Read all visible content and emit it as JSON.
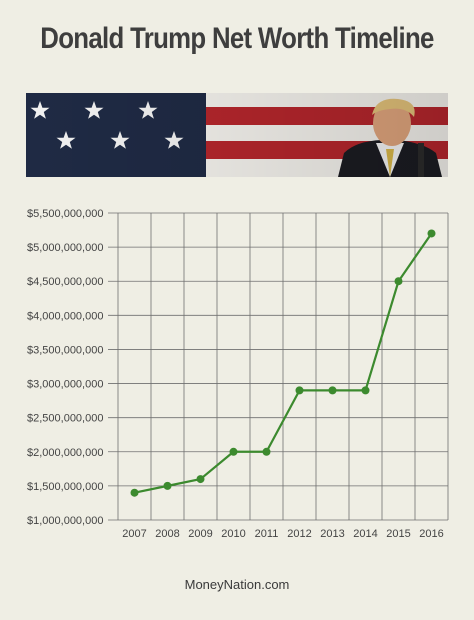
{
  "header": {
    "title": "Donald Trump Net Worth Timeline"
  },
  "banner": {
    "image": "american-flag-with-portrait",
    "colors": {
      "navy": "#1f2a44",
      "red": "#b5262c",
      "white": "#f3f1ec"
    }
  },
  "chart_data": {
    "type": "line",
    "title": "",
    "xlabel": "",
    "ylabel": "",
    "x": [
      2007,
      2008,
      2009,
      2010,
      2011,
      2012,
      2013,
      2014,
      2015,
      2016
    ],
    "x_tick_labels": [
      "2007",
      "2008",
      "2009",
      "2010",
      "2011",
      "2012",
      "2013",
      "2014",
      "2015",
      "2016"
    ],
    "series": [
      {
        "values": [
          1400000000,
          1500000000,
          1600000000,
          2000000000,
          2000000000,
          2900000000,
          2900000000,
          2900000000,
          4500000000,
          5200000000
        ]
      }
    ],
    "ylim": [
      1000000000,
      5500000000
    ],
    "y_ticks": [
      1000000000,
      1500000000,
      2000000000,
      2500000000,
      3000000000,
      3500000000,
      4000000000,
      4500000000,
      5000000000,
      5500000000
    ],
    "y_tick_labels": [
      "$1,000,000,000",
      "$1,500,000,000",
      "$2,000,000,000",
      "$2,500,000,000",
      "$3,000,000,000",
      "$3,500,000,000",
      "$4,000,000,000",
      "$4,500,000,000",
      "$5,000,000,000",
      "$5,500,000,000"
    ],
    "grid": true,
    "colors": {
      "line": "#3c8a2e",
      "marker": "#3c8a2e",
      "grid": "#6f6f6f"
    }
  },
  "footer": {
    "source": "MoneyNation.com"
  }
}
